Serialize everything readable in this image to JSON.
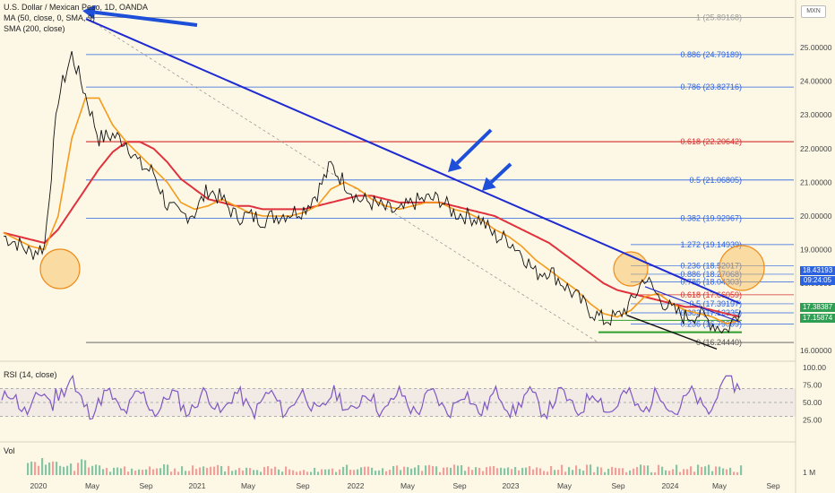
{
  "header": {
    "symbol": "U.S. Dollar / Mexican Peso, 1D, OANDA",
    "ma_label": "MA (50, close, 0, SMA, 9)",
    "sma_label": "SMA (200, close)",
    "currency_badge": "MXN"
  },
  "price_axis": [
    "25.00000",
    "24.00000",
    "23.00000",
    "22.00000",
    "21.00000",
    "20.00000",
    "19.00000",
    "18.00000",
    "17.00000",
    "16.00000"
  ],
  "price_tags": [
    {
      "text": "18.43193",
      "color": "#2a62e0"
    },
    {
      "text": "09:24:05",
      "color": "#2a62e0"
    },
    {
      "text": "17.38387",
      "color": "#2e9e52"
    },
    {
      "text": "17.15874",
      "color": "#2e9e52"
    }
  ],
  "fib_main": [
    {
      "ratio": "1",
      "price": "(25.89168)",
      "value": 25.89168,
      "color": "#9a9a9a"
    },
    {
      "ratio": "0.886",
      "price": "(24.79189)",
      "value": 24.79189,
      "color": "#2a62e0"
    },
    {
      "ratio": "0.786",
      "price": "(23.82716)",
      "value": 23.82716,
      "color": "#2a62e0"
    },
    {
      "ratio": "0.618",
      "price": "(22.20642)",
      "value": 22.20642,
      "color": "#d32f2f"
    },
    {
      "ratio": "0.5",
      "price": "(21.06805)",
      "value": 21.06805,
      "color": "#2a62e0"
    },
    {
      "ratio": "0.382",
      "price": "(19.92967)",
      "value": 19.92967,
      "color": "#2a62e0"
    },
    {
      "ratio": "0",
      "price": "(16.24440)",
      "value": 16.2444,
      "color": "#555555"
    }
  ],
  "fib_recent": [
    {
      "ratio": "1.272",
      "price": "(19.14939)",
      "value": 19.14939,
      "color": "#2a62e0"
    },
    {
      "ratio": "0.236",
      "price": "(18.52017)",
      "value": 18.52017,
      "color": "#2a62e0"
    },
    {
      "ratio": "0.886",
      "price": "(18.27068)",
      "value": 18.27068,
      "color": "#2a62e0"
    },
    {
      "ratio": "0.786",
      "price": "(18.04303)",
      "value": 18.04303,
      "color": "#2a62e0"
    },
    {
      "ratio": "0.618",
      "price": "(17.66059)",
      "value": 17.66059,
      "color": "#d32f2f"
    },
    {
      "ratio": "0.5",
      "price": "(17.39197)",
      "value": 17.39197,
      "color": "#2a62e0"
    },
    {
      "ratio": "0.382",
      "price": "(17.12335)",
      "value": 17.12335,
      "color": "#2a62e0"
    },
    {
      "ratio": "0.236",
      "price": "(16.79099)",
      "value": 16.79099,
      "color": "#2a62e0"
    }
  ],
  "rsi": {
    "label": "RSI (14, close)",
    "axis": [
      "100.00",
      "75.00",
      "50.00",
      "25.00"
    ],
    "upper": 70,
    "lower": 30
  },
  "volume": {
    "label": "Vol",
    "axis": "1 M"
  },
  "time_axis": [
    "2020",
    "May",
    "Sep",
    "2021",
    "May",
    "Sep",
    "2022",
    "May",
    "Sep",
    "2023",
    "May",
    "Sep",
    "2024",
    "May",
    "Sep"
  ],
  "colors": {
    "price": "#111111",
    "ma50": "#f59a1b",
    "sma200": "#e0323c",
    "trendline": "#1f2bd0",
    "rsi": "#7e57c2",
    "support": "#2e9e2e"
  },
  "chart_data": {
    "type": "line",
    "title": "U.S. Dollar / Mexican Peso, 1D, OANDA",
    "x": [
      "2019-11",
      "2019-12",
      "2020-01",
      "2020-02",
      "2020-03",
      "2020-04",
      "2020-05",
      "2020-06",
      "2020-07",
      "2020-08",
      "2020-09",
      "2020-10",
      "2020-11",
      "2020-12",
      "2021-01",
      "2021-02",
      "2021-03",
      "2021-04",
      "2021-05",
      "2021-06",
      "2021-07",
      "2021-08",
      "2021-09",
      "2021-10",
      "2021-11",
      "2021-12",
      "2022-01",
      "2022-02",
      "2022-03",
      "2022-04",
      "2022-05",
      "2022-06",
      "2022-07",
      "2022-08",
      "2022-09",
      "2022-10",
      "2022-11",
      "2022-12",
      "2023-01",
      "2023-02",
      "2023-03",
      "2023-04",
      "2023-05",
      "2023-06",
      "2023-07",
      "2023-08",
      "2023-09",
      "2023-10",
      "2023-11",
      "2023-12",
      "2024-01",
      "2024-02",
      "2024-03",
      "2024-04",
      "2024-05"
    ],
    "series": [
      {
        "name": "Close",
        "values": [
          19.4,
          19.2,
          18.9,
          19.1,
          23.5,
          24.8,
          23.6,
          22.3,
          22.4,
          22.2,
          21.5,
          21.3,
          20.3,
          20.0,
          20.1,
          20.8,
          20.5,
          20.0,
          20.0,
          19.9,
          20.0,
          20.1,
          20.2,
          20.7,
          21.5,
          21.0,
          20.5,
          20.4,
          20.2,
          20.1,
          20.4,
          20.5,
          20.5,
          20.1,
          20.0,
          19.9,
          19.4,
          19.3,
          18.9,
          18.3,
          18.4,
          18.0,
          17.6,
          17.2,
          16.9,
          17.0,
          17.4,
          18.2,
          17.6,
          17.2,
          17.0,
          17.1,
          16.8,
          16.6,
          17.2
        ]
      },
      {
        "name": "MA (50, close, 0, SMA, 9)",
        "values": [
          19.5,
          19.3,
          19.1,
          19.0,
          20.0,
          22.3,
          23.5,
          23.5,
          22.7,
          22.2,
          21.8,
          21.4,
          21.0,
          20.4,
          20.2,
          20.3,
          20.5,
          20.3,
          20.1,
          20.0,
          20.0,
          20.0,
          20.1,
          20.3,
          20.8,
          21.0,
          20.8,
          20.5,
          20.3,
          20.2,
          20.3,
          20.4,
          20.4,
          20.2,
          20.1,
          19.9,
          19.6,
          19.4,
          19.1,
          18.7,
          18.4,
          18.1,
          17.8,
          17.4,
          17.1,
          17.0,
          17.2,
          17.6,
          17.7,
          17.4,
          17.2,
          17.1,
          17.0,
          16.8,
          16.9
        ]
      },
      {
        "name": "SMA (200, close)",
        "values": [
          19.5,
          19.4,
          19.3,
          19.2,
          19.6,
          20.2,
          20.8,
          21.4,
          21.9,
          22.2,
          22.2,
          22.0,
          21.6,
          21.1,
          20.8,
          20.5,
          20.4,
          20.3,
          20.3,
          20.2,
          20.2,
          20.2,
          20.2,
          20.3,
          20.4,
          20.5,
          20.6,
          20.6,
          20.5,
          20.4,
          20.4,
          20.4,
          20.4,
          20.3,
          20.2,
          20.1,
          20.0,
          19.8,
          19.6,
          19.4,
          19.2,
          18.9,
          18.6,
          18.3,
          18.0,
          17.8,
          17.7,
          17.6,
          17.5,
          17.4,
          17.3,
          17.3,
          17.2,
          17.1,
          17.0
        ]
      }
    ],
    "ylim": [
      15.9,
      26.2
    ],
    "xlabel": "",
    "ylabel": ""
  }
}
